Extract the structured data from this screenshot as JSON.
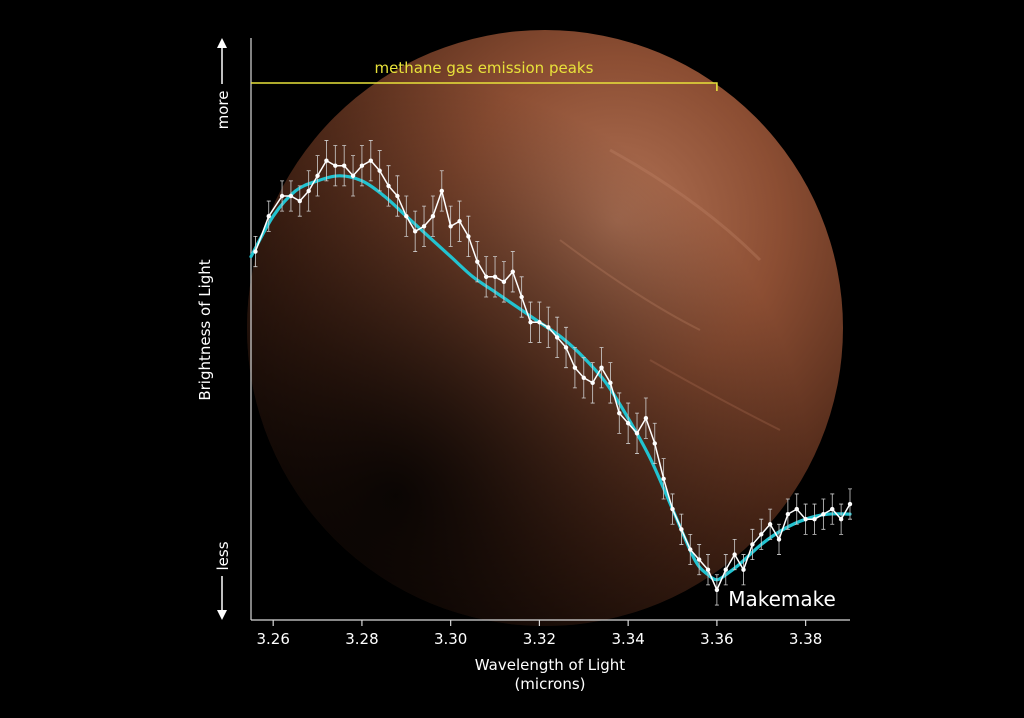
{
  "chart_data": {
    "type": "line",
    "title": "",
    "xlabel": "Wavelength of Light",
    "xlabel_unit": "(microns)",
    "ylabel": "Brightness of Light",
    "ylabel_top": "more",
    "ylabel_bottom": "less",
    "xlim": [
      3.255,
      3.39
    ],
    "ylim": [
      0,
      1
    ],
    "xticks": [
      3.26,
      3.28,
      3.3,
      3.32,
      3.34,
      3.36,
      3.38
    ],
    "xtick_labels": [
      "3.26",
      "3.28",
      "3.30",
      "3.32",
      "3.34",
      "3.36",
      "3.38"
    ],
    "yticks_shown": false,
    "grid": false,
    "annotation": {
      "text": "methane gas emission peaks",
      "x_range": [
        3.255,
        3.36
      ],
      "color": "#e8e23a"
    },
    "object_label": "Makemake",
    "colors": {
      "observed": "#ffffff",
      "model": "#22c3d0",
      "background": "#000000",
      "planet": "#8a4b32"
    },
    "series": [
      {
        "style": "measured points with error bars",
        "x": [
          3.256,
          3.259,
          3.262,
          3.264,
          3.266,
          3.268,
          3.27,
          3.272,
          3.274,
          3.276,
          3.278,
          3.28,
          3.282,
          3.284,
          3.286,
          3.288,
          3.29,
          3.292,
          3.294,
          3.296,
          3.298,
          3.3,
          3.302,
          3.304,
          3.306,
          3.308,
          3.31,
          3.312,
          3.314,
          3.316,
          3.318,
          3.32,
          3.322,
          3.324,
          3.326,
          3.328,
          3.33,
          3.332,
          3.334,
          3.336,
          3.338,
          3.34,
          3.342,
          3.344,
          3.346,
          3.348,
          3.35,
          3.352,
          3.354,
          3.356,
          3.358,
          3.36,
          3.362,
          3.364,
          3.366,
          3.368,
          3.37,
          3.372,
          3.374,
          3.376,
          3.378,
          3.38,
          3.382,
          3.384,
          3.386,
          3.388,
          3.39
        ],
        "y": [
          0.69,
          0.76,
          0.8,
          0.8,
          0.79,
          0.81,
          0.84,
          0.87,
          0.86,
          0.86,
          0.84,
          0.86,
          0.87,
          0.85,
          0.82,
          0.8,
          0.76,
          0.73,
          0.74,
          0.76,
          0.81,
          0.74,
          0.75,
          0.72,
          0.67,
          0.64,
          0.64,
          0.63,
          0.65,
          0.6,
          0.55,
          0.55,
          0.54,
          0.52,
          0.5,
          0.46,
          0.44,
          0.43,
          0.46,
          0.43,
          0.37,
          0.35,
          0.33,
          0.36,
          0.31,
          0.24,
          0.18,
          0.14,
          0.1,
          0.08,
          0.06,
          0.02,
          0.06,
          0.09,
          0.06,
          0.11,
          0.13,
          0.15,
          0.12,
          0.17,
          0.18,
          0.16,
          0.16,
          0.17,
          0.18,
          0.16,
          0.19
        ],
        "errors": [
          0.03,
          0.03,
          0.03,
          0.03,
          0.03,
          0.04,
          0.04,
          0.04,
          0.04,
          0.04,
          0.04,
          0.04,
          0.04,
          0.04,
          0.04,
          0.04,
          0.04,
          0.04,
          0.04,
          0.04,
          0.04,
          0.04,
          0.04,
          0.04,
          0.04,
          0.04,
          0.04,
          0.04,
          0.04,
          0.04,
          0.04,
          0.04,
          0.04,
          0.04,
          0.04,
          0.04,
          0.04,
          0.04,
          0.04,
          0.04,
          0.04,
          0.04,
          0.04,
          0.04,
          0.04,
          0.04,
          0.03,
          0.03,
          0.03,
          0.03,
          0.03,
          0.03,
          0.03,
          0.03,
          0.03,
          0.03,
          0.03,
          0.03,
          0.03,
          0.03,
          0.03,
          0.03,
          0.03,
          0.03,
          0.03,
          0.03,
          0.03
        ]
      },
      {
        "style": "smooth model curve",
        "x": [
          3.255,
          3.26,
          3.265,
          3.27,
          3.275,
          3.28,
          3.285,
          3.29,
          3.295,
          3.3,
          3.305,
          3.31,
          3.315,
          3.32,
          3.325,
          3.33,
          3.335,
          3.34,
          3.345,
          3.35,
          3.355,
          3.358,
          3.36,
          3.362,
          3.365,
          3.37,
          3.375,
          3.38,
          3.385,
          3.39
        ],
        "y": [
          0.68,
          0.76,
          0.81,
          0.83,
          0.84,
          0.83,
          0.8,
          0.76,
          0.72,
          0.68,
          0.64,
          0.61,
          0.58,
          0.55,
          0.52,
          0.48,
          0.43,
          0.36,
          0.28,
          0.18,
          0.08,
          0.05,
          0.04,
          0.05,
          0.07,
          0.11,
          0.14,
          0.16,
          0.17,
          0.17
        ]
      }
    ]
  }
}
